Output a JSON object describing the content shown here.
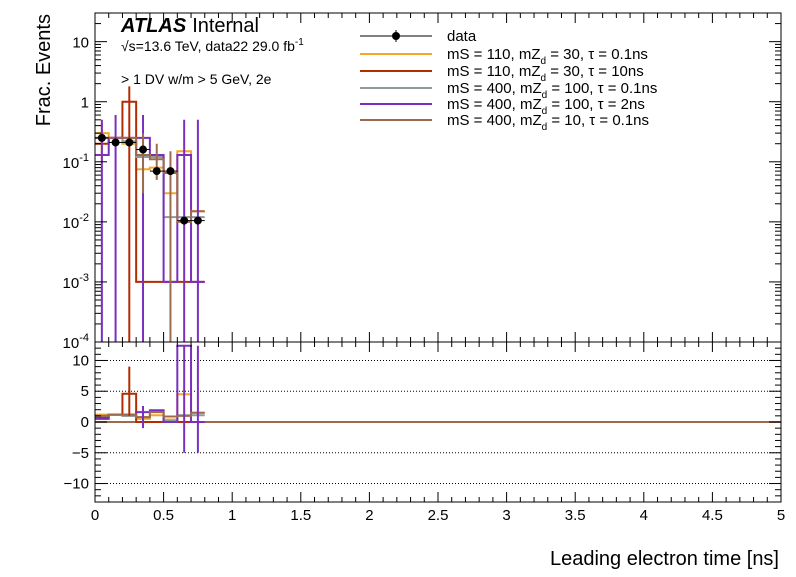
{
  "chart_data": [
    {
      "panel": "main",
      "type": "line",
      "xlabel": "Leading electron time [ns]",
      "ylabel": "Frac. Events",
      "xlim": [
        0,
        5
      ],
      "ylim": [
        0.0001,
        30
      ],
      "yscale": "log",
      "x_ticks": [
        "0",
        "0.5",
        "1",
        "1.5",
        "2",
        "2.5",
        "3",
        "3.5",
        "4",
        "4.5",
        "5"
      ],
      "y_tick_labels": [
        {
          "v": 10,
          "base": "10",
          "exp": ""
        },
        {
          "v": 1,
          "base": "1",
          "exp": ""
        },
        {
          "v": 0.1,
          "base": "10",
          "exp": "-1"
        },
        {
          "v": 0.01,
          "base": "10",
          "exp": "-2"
        },
        {
          "v": 0.001,
          "base": "10",
          "exp": "-3"
        },
        {
          "v": 0.0001,
          "base": "10",
          "exp": "-4"
        }
      ],
      "atlas": {
        "brand": "ATLAS",
        "status": "Internal"
      },
      "annotations": {
        "energy_line": "√s=13.6 TeV, data22 29.0 fb",
        "lumi_exp": "-1",
        "selection": "> 1 DV w/m > 5 GeV, 2e"
      },
      "bin_edges": [
        0,
        0.1,
        0.2,
        0.3,
        0.4,
        0.5,
        0.6,
        0.7,
        0.8
      ],
      "data_points": {
        "name": "data",
        "x": [
          0.05,
          0.15,
          0.25,
          0.35,
          0.45,
          0.55,
          0.65,
          0.75
        ],
        "y": [
          0.25,
          0.21,
          0.21,
          0.16,
          0.07,
          0.07,
          0.0105,
          0.0105
        ]
      },
      "series": [
        {
          "name": "mS = 110, mZ_d = 30, τ = 0.1ns",
          "color": "#f5a623",
          "values": [
            0.3,
            0.25,
            0.2,
            0.075,
            0.08,
            0.03,
            0.15,
            0.015
          ]
        },
        {
          "name": "mS = 110, mZ_d = 30, τ = 10ns",
          "color": "#b22c00",
          "values": [
            0.2,
            0.25,
            1.0,
            0.001,
            0.001,
            0.001,
            0.001,
            0.001
          ]
        },
        {
          "name": "mS = 400, mZ_d = 100, τ = 0.1ns",
          "color": "#8e9a9c",
          "values": [
            0.25,
            0.25,
            0.22,
            0.12,
            0.12,
            0.012,
            0.012,
            0.012
          ]
        },
        {
          "name": "mS = 400, mZ_d = 100, τ = 2ns",
          "color": "#7a2fbf",
          "values": [
            0.13,
            0.25,
            0.25,
            0.25,
            0.13,
            0.001,
            0.13,
            0.001
          ]
        },
        {
          "name": "mS = 400, mZ_d = 10, τ = 0.1ns",
          "color": "#9c6b4e",
          "values": [
            0.25,
            0.25,
            0.25,
            0.13,
            0.11,
            0.065,
            0.01,
            0.015
          ]
        }
      ],
      "signal_error_bars": [
        {
          "series": 0,
          "x": 0.05,
          "lo": 0.1,
          "hi": 0.45
        },
        {
          "series": 1,
          "x": 0.25,
          "lo": 0.0001,
          "hi": 1.8
        },
        {
          "series": 3,
          "x": 0.05,
          "lo": 0.0001,
          "hi": 0.5
        },
        {
          "series": 3,
          "x": 0.15,
          "lo": 0.0001,
          "hi": 0.6
        },
        {
          "series": 3,
          "x": 0.35,
          "lo": 0.0001,
          "hi": 0.6
        },
        {
          "series": 3,
          "x": 0.65,
          "lo": 0.0001,
          "hi": 0.5
        },
        {
          "series": 3,
          "x": 0.75,
          "lo": 0.0001,
          "hi": 0.5
        },
        {
          "series": 4,
          "x": 0.35,
          "lo": 0.03,
          "hi": 0.3
        },
        {
          "series": 4,
          "x": 0.45,
          "lo": 0.05,
          "hi": 0.2
        },
        {
          "series": 4,
          "x": 0.55,
          "lo": 0.0001,
          "hi": 0.15
        }
      ],
      "legend": {
        "placement": "top-center"
      }
    },
    {
      "panel": "ratio",
      "type": "line",
      "xlim": [
        0,
        5
      ],
      "ylim": [
        -13,
        13
      ],
      "y_ticks": [
        10,
        5,
        0,
        -5,
        -10
      ],
      "y_tick_labels": [
        "10",
        "5",
        "0",
        "−5",
        "−10"
      ],
      "gridlines_y": [
        10,
        5,
        0,
        -5,
        -10
      ],
      "series": [
        {
          "name": "mS = 110, mZ_d = 30, τ = 0.1ns",
          "color": "#f5a623",
          "values": [
            1.2,
            1.2,
            1.0,
            0.5,
            1.1,
            0.4,
            4.5,
            1.5
          ]
        },
        {
          "name": "mS = 110, mZ_d = 30, τ = 10ns",
          "color": "#b22c00",
          "values": [
            0.8,
            1.2,
            4.6,
            0,
            0,
            0,
            0,
            0
          ]
        },
        {
          "name": "mS = 400, mZ_d = 100, τ = 0.1ns",
          "color": "#8e9a9c",
          "values": [
            1.0,
            1.2,
            1.0,
            0.8,
            1.7,
            0.2,
            1.1,
            1.1
          ]
        },
        {
          "name": "mS = 400, mZ_d = 100, τ = 2ns",
          "color": "#7a2fbf",
          "values": [
            0.5,
            1.2,
            1.2,
            1.6,
            1.9,
            0,
            12.4,
            0
          ]
        },
        {
          "name": "mS = 400, mZ_d = 10, τ = 0.1ns",
          "color": "#9c6b4e",
          "values": [
            1.0,
            1.2,
            1.2,
            0.8,
            1.6,
            0.9,
            1.0,
            1.5
          ]
        }
      ],
      "error_bars": [
        {
          "series": 1,
          "x": 0.25,
          "lo": 1.0,
          "hi": 9.0
        },
        {
          "series": 3,
          "x": 0.35,
          "lo": -1.0,
          "hi": 2.6
        },
        {
          "series": 3,
          "x": 0.65,
          "lo": -5.0,
          "hi": 12.4
        },
        {
          "series": 3,
          "x": 0.75,
          "lo": -5.0,
          "hi": 12.4
        }
      ]
    }
  ]
}
